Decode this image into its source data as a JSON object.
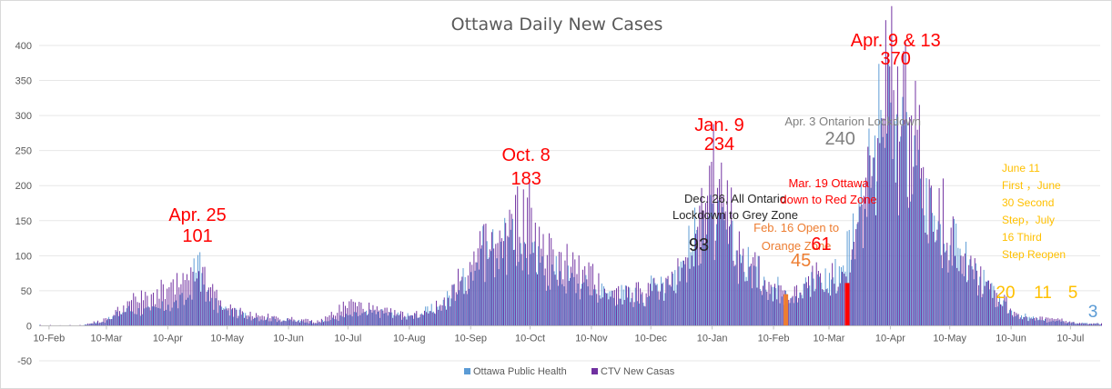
{
  "chart_data": {
    "type": "bar",
    "title": "Ottawa Daily New Cases",
    "xlabel": "",
    "ylabel": "",
    "ylim": [
      -50,
      400
    ],
    "grid": true,
    "legend_position": "bottom",
    "x_start": "2020-02-05",
    "x_end": "2021-07-25",
    "x_ticks": [
      "10-Feb",
      "10-Mar",
      "10-Apr",
      "10-May",
      "10-Jun",
      "10-Jul",
      "10-Aug",
      "10-Sep",
      "10-Oct",
      "10-Nov",
      "10-Dec",
      "10-Jan",
      "10-Feb",
      "10-Mar",
      "10-Apr",
      "10-May",
      "10-Jun",
      "10-Jul"
    ],
    "y_ticks": [
      -50,
      0,
      50,
      100,
      150,
      200,
      250,
      300,
      350,
      400
    ],
    "series": [
      {
        "name": "Ottawa Public Health",
        "color": "#5b9bd5",
        "points": [
          [
            "2020-03-10",
            8
          ],
          [
            "2020-03-20",
            25
          ],
          [
            "2020-04-01",
            22
          ],
          [
            "2020-04-10",
            30
          ],
          [
            "2020-04-20",
            40
          ],
          [
            "2020-04-25",
            101
          ],
          [
            "2020-05-01",
            35
          ],
          [
            "2020-05-10",
            22
          ],
          [
            "2020-05-25",
            12
          ],
          [
            "2020-06-10",
            8
          ],
          [
            "2020-06-25",
            5
          ],
          [
            "2020-07-10",
            15
          ],
          [
            "2020-07-25",
            20
          ],
          [
            "2020-08-10",
            14
          ],
          [
            "2020-08-25",
            28
          ],
          [
            "2020-09-05",
            65
          ],
          [
            "2020-09-15",
            110
          ],
          [
            "2020-09-25",
            120
          ],
          [
            "2020-10-05",
            118
          ],
          [
            "2020-10-15",
            90
          ],
          [
            "2020-10-25",
            78
          ],
          [
            "2020-11-05",
            60
          ],
          [
            "2020-11-20",
            50
          ],
          [
            "2020-12-05",
            45
          ],
          [
            "2020-12-15",
            70
          ],
          [
            "2020-12-26",
            93
          ],
          [
            "2021-01-05",
            160
          ],
          [
            "2021-01-12",
            145
          ],
          [
            "2021-01-25",
            100
          ],
          [
            "2021-02-05",
            70
          ],
          [
            "2021-02-16",
            50
          ],
          [
            "2021-02-25",
            60
          ],
          [
            "2021-03-05",
            70
          ],
          [
            "2021-03-15",
            85
          ],
          [
            "2021-03-25",
            180
          ],
          [
            "2021-04-01",
            240
          ],
          [
            "2021-04-05",
            308
          ],
          [
            "2021-04-15",
            270
          ],
          [
            "2021-04-25",
            210
          ],
          [
            "2021-05-05",
            145
          ],
          [
            "2021-05-15",
            110
          ],
          [
            "2021-05-25",
            70
          ],
          [
            "2021-06-05",
            30
          ],
          [
            "2021-06-15",
            15
          ],
          [
            "2021-06-25",
            8
          ],
          [
            "2021-07-05",
            6
          ],
          [
            "2021-07-20",
            3
          ]
        ]
      },
      {
        "name": "CTV New Casas",
        "color": "#7030a0",
        "points": [
          [
            "2020-03-10",
            10
          ],
          [
            "2020-03-20",
            35
          ],
          [
            "2020-04-01",
            45
          ],
          [
            "2020-04-10",
            55
          ],
          [
            "2020-04-20",
            65
          ],
          [
            "2020-04-25",
            78
          ],
          [
            "2020-05-01",
            55
          ],
          [
            "2020-05-10",
            25
          ],
          [
            "2020-05-25",
            15
          ],
          [
            "2020-06-10",
            10
          ],
          [
            "2020-06-25",
            6
          ],
          [
            "2020-07-10",
            35
          ],
          [
            "2020-07-25",
            22
          ],
          [
            "2020-08-10",
            15
          ],
          [
            "2020-08-25",
            30
          ],
          [
            "2020-09-05",
            70
          ],
          [
            "2020-09-15",
            115
          ],
          [
            "2020-09-25",
            125
          ],
          [
            "2020-10-08",
            183
          ],
          [
            "2020-10-15",
            110
          ],
          [
            "2020-10-25",
            105
          ],
          [
            "2020-11-05",
            80
          ],
          [
            "2020-11-20",
            50
          ],
          [
            "2020-12-05",
            48
          ],
          [
            "2020-12-15",
            60
          ],
          [
            "2020-12-26",
            93
          ],
          [
            "2021-01-09",
            234
          ],
          [
            "2021-01-15",
            185
          ],
          [
            "2021-01-25",
            110
          ],
          [
            "2021-02-05",
            65
          ],
          [
            "2021-02-16",
            45
          ],
          [
            "2021-02-25",
            60
          ],
          [
            "2021-03-05",
            75
          ],
          [
            "2021-03-19",
            61
          ],
          [
            "2021-03-25",
            170
          ],
          [
            "2021-04-01",
            240
          ],
          [
            "2021-04-09",
            370
          ],
          [
            "2021-04-13",
            370
          ],
          [
            "2021-04-20",
            300
          ],
          [
            "2021-04-30",
            200
          ],
          [
            "2021-05-10",
            140
          ],
          [
            "2021-05-20",
            100
          ],
          [
            "2021-05-30",
            60
          ],
          [
            "2021-06-11",
            20
          ],
          [
            "2021-06-20",
            10
          ],
          [
            "2021-06-30",
            11
          ],
          [
            "2021-07-10",
            5
          ],
          [
            "2021-07-20",
            3
          ]
        ]
      }
    ],
    "annotations": [
      {
        "date": "2020-04-25",
        "label": "Apr. 25",
        "value_label": "101",
        "color": "#ff0000"
      },
      {
        "date": "2020-10-08",
        "label": "Oct. 8",
        "value_label": "183",
        "color": "#ff0000"
      },
      {
        "date": "2020-12-26",
        "label": "Dec. 26, All Ontario",
        "label2": "Lockdown to Grey Zone",
        "value_label": "93",
        "color": "#262626"
      },
      {
        "date": "2021-01-09",
        "label": "Jan. 9",
        "value_label": "234",
        "color": "#ff0000"
      },
      {
        "date": "2021-02-16",
        "label": "Feb. 16 Open to",
        "label2": "Orange Zone",
        "value_label": "45",
        "color": "#ed7d31"
      },
      {
        "date": "2021-03-19",
        "label": "Mar. 19 Ottawa",
        "label2": "down to Red Zone",
        "value_label": "61",
        "color": "#ff0000"
      },
      {
        "date": "2021-04-03",
        "label": "Apr. 3 Ontarion Lockdown",
        "value_label": "240",
        "color": "#7f7f7f"
      },
      {
        "date": "2021-04-09",
        "label": "Apr. 9 & 13",
        "value_label": "370",
        "color": "#ff0000"
      },
      {
        "date": "2021-06-11",
        "label": "June 11",
        "label2": "First ，June",
        "label3": "30 Second",
        "label4": "Step，July",
        "label5": "16 Third",
        "label6": "Step Reopen",
        "color": "#ffc000"
      },
      {
        "date": "2021-06-11",
        "value_label": "20",
        "color": "#ffc000"
      },
      {
        "date": "2021-06-30",
        "value_label": "11",
        "color": "#ffc000"
      },
      {
        "date": "2021-07-16",
        "value_label": "5",
        "color": "#ffc000"
      },
      {
        "date": "2021-07-25",
        "value_label": "3",
        "color": "#5b9bd5"
      }
    ],
    "highlight_bars": [
      {
        "date": "2021-03-19",
        "value": 61,
        "color": "#ff0000"
      },
      {
        "date": "2021-02-16",
        "value": 45,
        "color": "#ed7d31"
      }
    ]
  }
}
